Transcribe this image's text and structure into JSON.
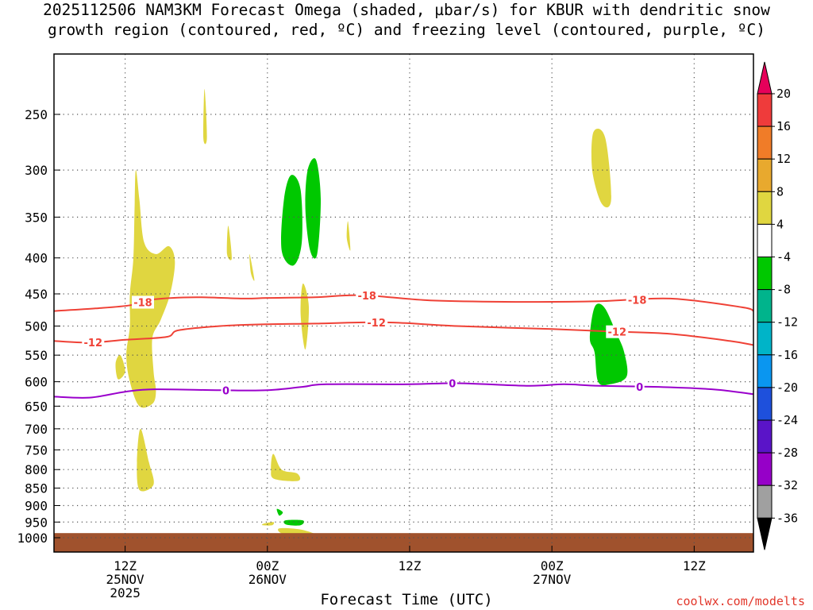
{
  "title": {
    "line1": "2025112506 NAM3KM Forecast Omega (shaded, µbar/s) for KBUR with dendritic snow",
    "line2": "growth region (contoured, red, ºC) and freezing level (contoured, purple, ºC)"
  },
  "xlabel": "Forecast Time (UTC)",
  "credit": "coolwx.com/modelts",
  "colors": {
    "ground": "#a0522d",
    "dgz": "#ef4136",
    "freezing": "#9a00cc"
  },
  "chart_data": {
    "type": "heatmap",
    "title": "2025112506 NAM3KM Forecast Omega (shaded, µbar/s) for KBUR with dendritic snow growth region (contoured, red, ºC) and freezing level (contoured, purple, ºC)",
    "xlabel": "Forecast Time (UTC)",
    "ylabel": "",
    "x_range_hours": [
      0,
      59
    ],
    "x_ticks": [
      {
        "hour": 6,
        "lines": [
          "12Z",
          "25NOV",
          "2025"
        ]
      },
      {
        "hour": 18,
        "lines": [
          "00Z",
          "26NOV"
        ]
      },
      {
        "hour": 30,
        "lines": [
          "12Z"
        ]
      },
      {
        "hour": 42,
        "lines": [
          "00Z",
          "27NOV"
        ]
      },
      {
        "hour": 54,
        "lines": [
          "12Z"
        ]
      }
    ],
    "y_axis": {
      "scale": "log-pressure",
      "inverted": true,
      "range_hpa": [
        1000,
        200
      ],
      "ticks": [
        250,
        300,
        350,
        400,
        450,
        500,
        550,
        600,
        650,
        700,
        750,
        800,
        850,
        900,
        950,
        1000
      ]
    },
    "grid": true,
    "colorbar": {
      "position": "right",
      "labels": [
        20,
        16,
        12,
        8,
        4,
        -4,
        -8,
        -12,
        -16,
        -20,
        -24,
        -28,
        -32,
        -36
      ],
      "colors": [
        "#e6005a",
        "#ef3b3b",
        "#f07c28",
        "#e8a92e",
        "#e0d640",
        "#ffffff",
        "#00c800",
        "#00b48c",
        "#00b4c8",
        "#0a96f0",
        "#1e50dc",
        "#5a14c8",
        "#9600c8",
        "#a0a0a0"
      ],
      "extend": "both"
    },
    "omega_regions": [
      {
        "level": "4 to 8",
        "color": "#e0d640",
        "points": [
          [
            12.7,
            230
          ],
          [
            12.9,
            270
          ],
          [
            12.6,
            270
          ]
        ]
      },
      {
        "level": "4 to 8",
        "color": "#e0d640",
        "points": [
          [
            6.9,
            300
          ],
          [
            7.2,
            330
          ],
          [
            7.6,
            380
          ],
          [
            8.6,
            395
          ],
          [
            9.7,
            385
          ],
          [
            10.2,
            405
          ],
          [
            9.8,
            450
          ],
          [
            9,
            490
          ],
          [
            8.3,
            520
          ],
          [
            8.4,
            580
          ],
          [
            8.6,
            620
          ],
          [
            8.3,
            645
          ],
          [
            7.2,
            650
          ],
          [
            6.4,
            600
          ],
          [
            6.1,
            550
          ],
          [
            6.4,
            500
          ],
          [
            6.4,
            450
          ],
          [
            6.7,
            400
          ],
          [
            6.8,
            340
          ]
        ]
      },
      {
        "level": "4 to 8",
        "color": "#e0d640",
        "points": [
          [
            5.6,
            550
          ],
          [
            6.0,
            580
          ],
          [
            5.4,
            595
          ],
          [
            5.2,
            565
          ]
        ]
      },
      {
        "level": "4 to 8",
        "color": "#e0d640",
        "points": [
          [
            14.7,
            360
          ],
          [
            15.0,
            400
          ],
          [
            14.6,
            395
          ]
        ]
      },
      {
        "level": "4 to 8",
        "color": "#e0d640",
        "points": [
          [
            16.5,
            395
          ],
          [
            16.9,
            430
          ],
          [
            16.6,
            420
          ]
        ]
      },
      {
        "level": "4 to 8",
        "color": "#e0d640",
        "points": [
          [
            21.0,
            435
          ],
          [
            21.5,
            470
          ],
          [
            21.2,
            540
          ],
          [
            20.8,
            480
          ]
        ]
      },
      {
        "level": "4 to 8",
        "color": "#e0d640",
        "points": [
          [
            24.8,
            355
          ],
          [
            25.0,
            390
          ],
          [
            24.7,
            375
          ]
        ]
      },
      {
        "level": "4 to 8",
        "color": "#e0d640",
        "points": [
          [
            45.5,
            265
          ],
          [
            46.5,
            270
          ],
          [
            47.0,
            330
          ],
          [
            46.2,
            335
          ],
          [
            45.4,
            300
          ]
        ]
      },
      {
        "level": "4 to 8",
        "color": "#e0d640",
        "points": [
          [
            7.3,
            700
          ],
          [
            8.0,
            780
          ],
          [
            8.4,
            840
          ],
          [
            7.2,
            855
          ],
          [
            7.0,
            780
          ]
        ]
      },
      {
        "level": "4 to 8",
        "color": "#e0d640",
        "points": [
          [
            18.5,
            760
          ],
          [
            19.2,
            800
          ],
          [
            20.5,
            810
          ],
          [
            20.6,
            830
          ],
          [
            18.6,
            825
          ],
          [
            18.3,
            800
          ]
        ]
      },
      {
        "level": "4 to 8",
        "color": "#e0d640",
        "points": [
          [
            17.7,
            955
          ],
          [
            18.5,
            950
          ],
          [
            18.4,
            960
          ],
          [
            17.6,
            960
          ]
        ]
      },
      {
        "level": "4 to 8",
        "color": "#e0d640",
        "points": [
          [
            19.0,
            970
          ],
          [
            21.0,
            975
          ],
          [
            22.5,
            1000
          ],
          [
            19.5,
            990
          ]
        ]
      },
      {
        "level": "-4 to -8",
        "color": "#00c800",
        "points": [
          [
            20.0,
            305
          ],
          [
            20.8,
            320
          ],
          [
            20.9,
            380
          ],
          [
            20.2,
            410
          ],
          [
            19.2,
            390
          ],
          [
            19.4,
            330
          ]
        ]
      },
      {
        "level": "-4 to -8",
        "color": "#00c800",
        "points": [
          [
            21.4,
            300
          ],
          [
            22.1,
            290
          ],
          [
            22.5,
            330
          ],
          [
            22.2,
            395
          ],
          [
            21.6,
            390
          ],
          [
            21.2,
            340
          ]
        ]
      },
      {
        "level": "-4 to -8",
        "color": "#00c800",
        "points": [
          [
            45.6,
            470
          ],
          [
            46.4,
            470
          ],
          [
            47.4,
            510
          ],
          [
            48.1,
            545
          ],
          [
            48.3,
            590
          ],
          [
            46.9,
            605
          ],
          [
            45.9,
            600
          ],
          [
            45.6,
            545
          ],
          [
            45.2,
            520
          ]
        ]
      },
      {
        "level": "-4 to -8",
        "color": "#00c800",
        "points": [
          [
            18.8,
            910
          ],
          [
            19.3,
            920
          ],
          [
            19.0,
            930
          ]
        ]
      },
      {
        "level": "-4 to -8",
        "color": "#00c800",
        "points": [
          [
            19.5,
            945
          ],
          [
            21.0,
            945
          ],
          [
            20.8,
            960
          ],
          [
            19.6,
            958
          ]
        ]
      }
    ],
    "contours": [
      {
        "name": "dendritic snow growth region",
        "value": -18,
        "color": "#ef4136",
        "points": [
          [
            0,
            476
          ],
          [
            3.5,
            472
          ],
          [
            6.5,
            467
          ],
          [
            8.5,
            458
          ],
          [
            12,
            455
          ],
          [
            16,
            457
          ],
          [
            18,
            456
          ],
          [
            22,
            455
          ],
          [
            26,
            452
          ],
          [
            32,
            460
          ],
          [
            40,
            462
          ],
          [
            46,
            461
          ],
          [
            52,
            457
          ],
          [
            58,
            470
          ],
          [
            59,
            476
          ]
        ],
        "labels": [
          {
            "text": "-18",
            "x": 7.5
          },
          {
            "text": "-18",
            "x": 26.4
          },
          {
            "text": "-18",
            "x": 49.2
          }
        ]
      },
      {
        "name": "dendritic snow growth region",
        "value": -12,
        "color": "#ef4136",
        "points": [
          [
            0,
            525
          ],
          [
            3,
            528
          ],
          [
            6,
            523
          ],
          [
            9.5,
            518
          ],
          [
            10.5,
            507
          ],
          [
            14,
            500
          ],
          [
            18,
            497
          ],
          [
            22,
            496
          ],
          [
            28,
            494
          ],
          [
            34,
            500
          ],
          [
            42,
            505
          ],
          [
            47,
            509
          ],
          [
            52,
            513
          ],
          [
            57,
            525
          ],
          [
            59,
            532
          ]
        ],
        "labels": [
          {
            "text": "-12",
            "x": 3.3
          },
          {
            "text": "-12",
            "x": 27.2
          },
          {
            "text": "-12",
            "x": 47.5
          }
        ]
      },
      {
        "name": "freezing level",
        "value": 0,
        "color": "#9a00cc",
        "points": [
          [
            0,
            630
          ],
          [
            3,
            632
          ],
          [
            6,
            620
          ],
          [
            8.5,
            615
          ],
          [
            14,
            617
          ],
          [
            18,
            617
          ],
          [
            21,
            610
          ],
          [
            23,
            605
          ],
          [
            30,
            605
          ],
          [
            34,
            603
          ],
          [
            40,
            608
          ],
          [
            43,
            605
          ],
          [
            46,
            608
          ],
          [
            52,
            611
          ],
          [
            56,
            616
          ],
          [
            59,
            625
          ]
        ],
        "labels": [
          {
            "text": "0",
            "x": 14.5
          },
          {
            "text": "0",
            "x": 33.6
          },
          {
            "text": "0",
            "x": 49.4
          }
        ]
      }
    ],
    "ground_level_hpa": 985
  }
}
